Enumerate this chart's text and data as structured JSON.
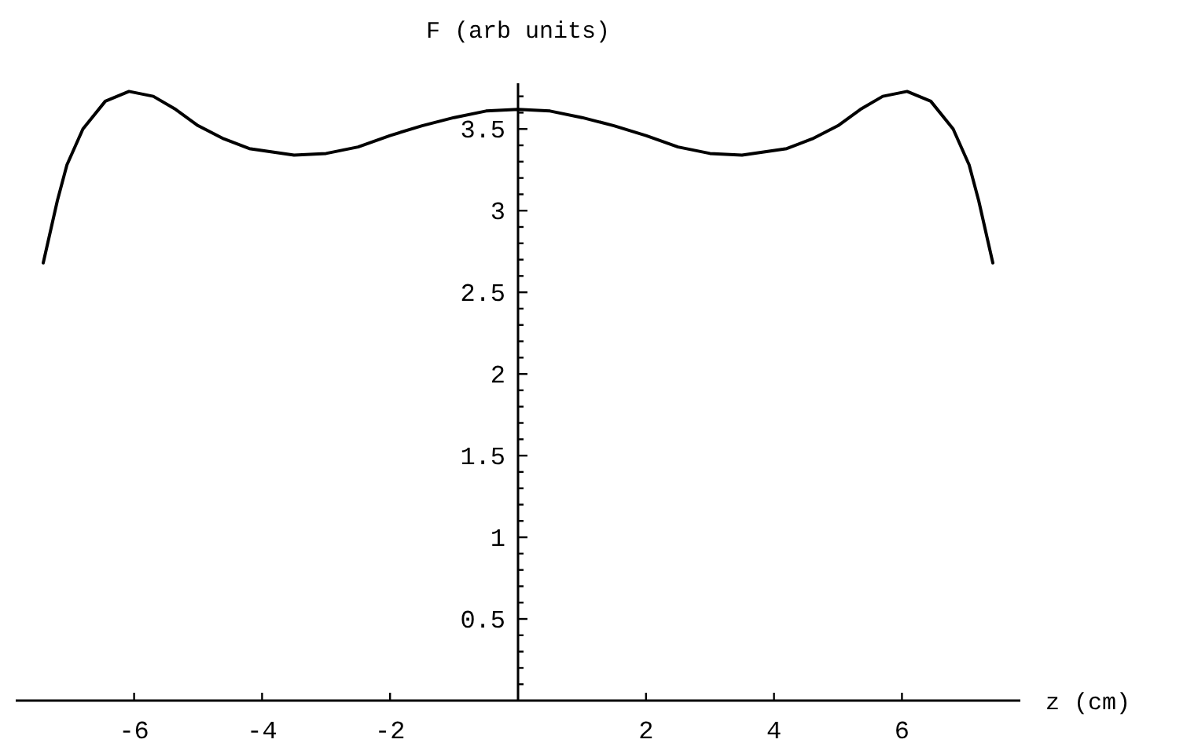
{
  "chart_data": {
    "type": "line",
    "xlabel": "z (cm)",
    "ylabel": "F (arb units)",
    "x": [
      -7.42,
      -7.2,
      -7.05,
      -6.8,
      -6.45,
      -6.08,
      -5.7,
      -5.35,
      -5.0,
      -4.6,
      -4.2,
      -3.5,
      -3.0,
      -2.5,
      -2.0,
      -1.5,
      -1.0,
      -0.5,
      0,
      0.5,
      1.0,
      1.5,
      2.0,
      2.5,
      3.0,
      3.5,
      4.2,
      4.6,
      5.0,
      5.35,
      5.7,
      6.08,
      6.45,
      6.8,
      7.05,
      7.2,
      7.42
    ],
    "values": [
      2.68,
      3.06,
      3.28,
      3.5,
      3.67,
      3.73,
      3.7,
      3.62,
      3.52,
      3.44,
      3.38,
      3.34,
      3.35,
      3.39,
      3.46,
      3.52,
      3.57,
      3.61,
      3.62,
      3.61,
      3.57,
      3.52,
      3.46,
      3.39,
      3.35,
      3.34,
      3.38,
      3.44,
      3.52,
      3.62,
      3.7,
      3.73,
      3.67,
      3.5,
      3.28,
      3.06,
      2.68
    ],
    "color": "#000000",
    "xlim": [
      -7.85,
      7.85
    ],
    "ylim": [
      0,
      3.78
    ],
    "xticks": [
      -6,
      -4,
      -2,
      2,
      4,
      6
    ],
    "yticks": [
      {
        "value": 0.1,
        "label": null
      },
      {
        "value": 0.2,
        "label": null
      },
      {
        "value": 0.3,
        "label": null
      },
      {
        "value": 0.4,
        "label": null
      },
      0.5,
      {
        "value": 0.6,
        "label": null
      },
      {
        "value": 0.7,
        "label": null
      },
      {
        "value": 0.8,
        "label": null
      },
      {
        "value": 0.9,
        "label": null
      },
      1,
      {
        "value": 1.1,
        "label": null
      },
      {
        "value": 1.2,
        "label": null
      },
      {
        "value": 1.3,
        "label": null
      },
      {
        "value": 1.4,
        "label": null
      },
      1.5,
      {
        "value": 1.6,
        "label": null
      },
      {
        "value": 1.7,
        "label": null
      },
      {
        "value": 1.8,
        "label": null
      },
      {
        "value": 1.9,
        "label": null
      },
      2,
      {
        "value": 2.1,
        "label": null
      },
      {
        "value": 2.2,
        "label": null
      },
      {
        "value": 2.3,
        "label": null
      },
      {
        "value": 2.4,
        "label": null
      },
      2.5,
      {
        "value": 2.6,
        "label": null
      },
      {
        "value": 2.7,
        "label": null
      },
      {
        "value": 2.8,
        "label": null
      },
      {
        "value": 2.9,
        "label": null
      },
      3,
      {
        "value": 3.1,
        "label": null
      },
      {
        "value": 3.2,
        "label": null
      },
      {
        "value": 3.3,
        "label": null
      },
      {
        "value": 3.4,
        "label": null
      },
      3.5,
      {
        "value": 3.6,
        "label": null
      },
      {
        "value": 3.7,
        "label": null
      }
    ]
  }
}
